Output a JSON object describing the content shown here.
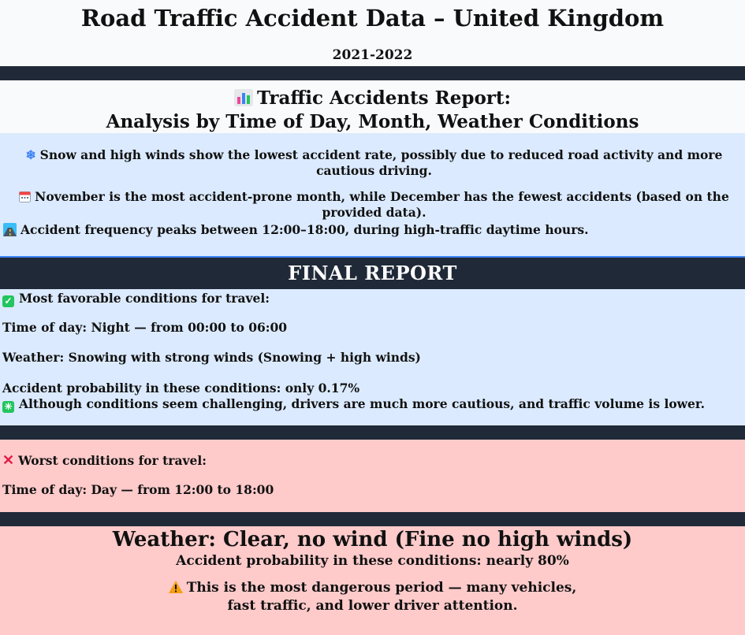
{
  "header": {
    "title": "Road Traffic Accident Data – United Kingdom",
    "period": "2021-2022"
  },
  "report": {
    "heading_line1": "Traffic Accidents Report:",
    "heading_line2": "Analysis by Time of Day, Month, Weather Conditions",
    "insights": [
      {
        "icon": "snowflake-icon",
        "text": "Snow and high winds show the lowest accident rate, possibly due to reduced road activity and more cautious driving."
      },
      {
        "icon": "calendar-icon",
        "text": "November is the most accident-prone month, while December has the fewest accidents (based on the provided data)."
      },
      {
        "icon": "road-icon",
        "text": "Accident frequency peaks between 12:00–18:00, during high-traffic daytime hours."
      }
    ]
  },
  "final": {
    "banner": "FINAL  REPORT",
    "best": {
      "heading": "Most favorable conditions for travel:",
      "time": "Time of day: Night — from 00:00 to 06:00",
      "weather": "Weather: Snowing with strong winds (Snowing + high winds)",
      "probability": "Accident probability in these conditions: only 0.17%",
      "note": "Although conditions seem challenging, drivers are much more cautious, and traffic volume is lower."
    },
    "worst": {
      "heading": "Worst conditions for travel:",
      "time": "Time of day: Day — from 12:00 to 18:00",
      "weather": "Weather: Clear, no wind (Fine no high winds)",
      "probability": "Accident probability in these conditions: nearly 80%",
      "warning_line1": "This is the most dangerous period — many vehicles,",
      "warning_line2": "fast traffic, and lower driver attention."
    }
  },
  "colors": {
    "dark_bar": "#1f2937",
    "light_blue": "#dbeafe",
    "light_red": "#fecaca",
    "check_green": "#22c55e",
    "cross_red": "#e11d48"
  }
}
